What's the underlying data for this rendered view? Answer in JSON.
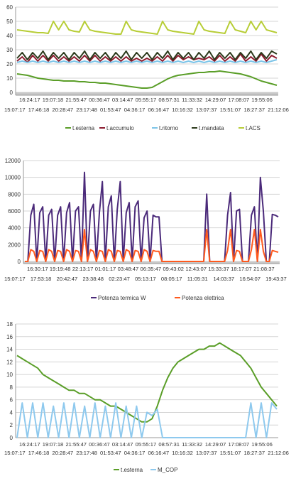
{
  "chart_data": [
    {
      "type": "line",
      "title": "",
      "xlabel": "",
      "ylabel": "",
      "ylim": [
        0,
        60
      ],
      "yticks": [
        0,
        10,
        20,
        30,
        40,
        50,
        60
      ],
      "grid": true,
      "legend": "bottom",
      "x_labels_top": [
        "16:24:17",
        "19:07:18",
        "21:55:47",
        "00:36:47",
        "03:14:47",
        "05:55:17",
        "08:57:31",
        "11:33:32",
        "14:29:07",
        "17:08:07",
        "19:55:06"
      ],
      "x_labels_bottom": [
        "15:07:17",
        "17:46:18",
        "20:28:47",
        "23:17:48",
        "01:53:47",
        "04:36:17",
        "06:16:47",
        "10:16:32",
        "13:07:37",
        "15:51:07",
        "18:27:37",
        "21:12:06"
      ],
      "series": [
        {
          "name": "t.esterna",
          "color": "#5a9e28",
          "values": [
            13,
            12.5,
            12,
            11,
            10,
            9.5,
            9,
            8.5,
            8.5,
            8,
            8,
            8,
            7.5,
            7.5,
            7,
            7,
            6.5,
            6.5,
            6,
            5.5,
            5,
            4.5,
            4,
            3.5,
            3,
            3,
            3.5,
            5.5,
            7.5,
            9.5,
            11,
            12,
            12.5,
            13,
            13.5,
            14,
            14,
            14.5,
            14.5,
            15,
            14.5,
            14,
            13.5,
            13,
            12,
            11,
            9.5,
            8,
            7,
            6,
            5
          ]
        },
        {
          "name": "t.accumulo",
          "color": "#8b1a2e",
          "values": [
            22,
            25,
            21,
            26,
            22,
            26,
            22,
            26,
            22,
            25,
            22,
            25,
            22,
            26,
            22,
            26,
            22,
            25,
            22,
            25,
            22,
            25,
            22,
            24,
            22,
            24,
            22,
            25,
            22,
            26,
            22,
            26,
            23,
            25,
            23,
            24,
            23,
            25,
            22,
            26,
            22,
            25,
            22,
            27,
            22,
            25,
            22,
            27,
            22,
            26,
            24
          ]
        },
        {
          "name": "t.ritorno",
          "color": "#7cc4e8",
          "values": [
            21,
            22,
            21,
            22,
            21,
            22,
            21,
            22,
            21,
            22,
            21,
            22,
            21,
            22,
            21,
            22,
            21,
            22,
            21,
            22,
            21,
            22,
            21,
            22,
            21,
            22,
            21,
            22,
            21,
            22,
            21,
            22,
            21,
            22,
            21,
            22,
            21,
            22,
            21,
            22,
            21,
            22,
            21,
            22,
            21,
            22,
            21,
            22,
            21,
            22,
            23
          ]
        },
        {
          "name": "t.mandata",
          "color": "#2c3a1c",
          "values": [
            24,
            28,
            23,
            28,
            24,
            29,
            23,
            28,
            24,
            28,
            23,
            28,
            24,
            29,
            23,
            28,
            24,
            28,
            23,
            28,
            24,
            29,
            23,
            28,
            24,
            28,
            23,
            28,
            24,
            29,
            23,
            28,
            24,
            28,
            23,
            28,
            24,
            29,
            23,
            28,
            24,
            28,
            23,
            28,
            24,
            29,
            23,
            28,
            24,
            29,
            27
          ]
        },
        {
          "name": "t.ACS",
          "color": "#b7cd36",
          "values": [
            44,
            43.5,
            43,
            42.5,
            42,
            42,
            41.5,
            50,
            44,
            50,
            44,
            43,
            42.5,
            50,
            44,
            43,
            42.5,
            42,
            41.5,
            41,
            41,
            50,
            44,
            43,
            42.5,
            42,
            41.5,
            41,
            50,
            44,
            43,
            42.5,
            42,
            41.5,
            41,
            50,
            44,
            43,
            42.5,
            42,
            41.5,
            50,
            44,
            43,
            42,
            50,
            44,
            50,
            44,
            43,
            42
          ]
        }
      ]
    },
    {
      "type": "line",
      "title": "",
      "xlabel": "",
      "ylabel": "",
      "ylim": [
        0,
        12000
      ],
      "yticks": [
        0,
        2000,
        4000,
        6000,
        8000,
        10000,
        12000
      ],
      "grid": true,
      "legend": "bottom",
      "x_labels_top": [
        "16:30:17",
        "19:19:48",
        "22:13:17",
        "01:01:17",
        "03:48:47",
        "06:35:47",
        "09:43:02",
        "12:43:07",
        "15:33:37",
        "18:17:07",
        "21:08:37"
      ],
      "x_labels_bottom": [
        "15:07:17",
        "17:53:18",
        "20:42:47",
        "23:38:48",
        "02:23:47",
        "05:13:17",
        "08:05:17",
        "11:05:31",
        "14:03:37",
        "16:54:07",
        "19:43:37"
      ],
      "series": [
        {
          "name": "Potenza termica W",
          "color": "#4b2a7a",
          "values": [
            0,
            0,
            5500,
            6800,
            0,
            5800,
            6500,
            0,
            5500,
            6200,
            0,
            5500,
            6500,
            0,
            5800,
            7000,
            0,
            6000,
            6500,
            0,
            10600,
            0,
            6000,
            6800,
            0,
            5800,
            9500,
            0,
            6500,
            7800,
            0,
            6200,
            9500,
            0,
            5800,
            7000,
            0,
            6500,
            7200,
            0,
            5200,
            6000,
            0,
            5500,
            5300,
            5300,
            0,
            0,
            0,
            0,
            0,
            0,
            0,
            0,
            0,
            0,
            0,
            0,
            0,
            0,
            0,
            8000,
            0,
            0,
            0,
            0,
            0,
            0,
            5500,
            8200,
            0,
            6000,
            6200,
            0,
            0,
            0,
            5500,
            6500,
            0,
            10000,
            6000,
            0,
            0,
            5600,
            5500,
            5300
          ]
        },
        {
          "name": "Potenza elettrica",
          "color": "#ff5a1e",
          "values": [
            0,
            0,
            1400,
            1200,
            0,
            1300,
            1200,
            0,
            1400,
            1200,
            0,
            1300,
            1200,
            0,
            1400,
            1200,
            0,
            1300,
            1200,
            0,
            3800,
            0,
            1400,
            1200,
            0,
            1300,
            1200,
            0,
            1400,
            1200,
            0,
            1300,
            1200,
            0,
            1400,
            1200,
            0,
            1300,
            1200,
            0,
            1400,
            1200,
            0,
            1300,
            1200,
            1200,
            0,
            0,
            0,
            0,
            0,
            0,
            0,
            0,
            0,
            0,
            0,
            0,
            0,
            0,
            0,
            3800,
            0,
            0,
            0,
            0,
            0,
            0,
            1300,
            3800,
            0,
            1300,
            1200,
            0,
            0,
            0,
            1400,
            3800,
            0,
            3800,
            1200,
            0,
            0,
            1300,
            1200,
            1100
          ]
        }
      ]
    },
    {
      "type": "line",
      "title": "",
      "xlabel": "",
      "ylabel": "",
      "ylim": [
        0,
        18
      ],
      "yticks": [
        0,
        2,
        4,
        6,
        8,
        10,
        12,
        14,
        16,
        18
      ],
      "grid": true,
      "legend": "bottom",
      "x_labels_top": [
        "16:24:17",
        "19:07:18",
        "21:55:47",
        "00:36:47",
        "03:14:47",
        "05:55:17",
        "08:57:31",
        "11:33:32",
        "14:29:07",
        "17:08:07",
        "19:55:06"
      ],
      "x_labels_bottom": [
        "15:07:17",
        "17:46:18",
        "20:28:47",
        "23:17:48",
        "01:53:47",
        "04:36:17",
        "06:16:47",
        "10:16:32",
        "13:07:37",
        "15:51:07",
        "18:27:37",
        "21:12:06"
      ],
      "series": [
        {
          "name": "t.esterna",
          "color": "#5a9e28",
          "values": [
            13,
            12.5,
            12,
            11.5,
            11,
            10,
            9.5,
            9,
            8.5,
            8,
            7.5,
            7.5,
            7,
            7,
            6.5,
            6,
            6,
            5.5,
            5,
            5,
            4.5,
            4,
            3.5,
            3,
            2.5,
            2.5,
            3,
            5,
            7.5,
            9.5,
            11,
            12,
            12.5,
            13,
            13.5,
            14,
            14,
            14.5,
            14.5,
            15,
            14.5,
            14,
            13.5,
            13,
            12,
            11,
            9.5,
            8,
            7,
            6,
            5
          ]
        },
        {
          "name": "M_COP",
          "color": "#8ec9ee",
          "values": [
            0,
            5.5,
            0,
            5.5,
            0,
            5.5,
            0,
            5,
            0,
            5.5,
            0,
            5.5,
            0,
            5,
            0,
            5.5,
            0,
            5,
            0,
            5.5,
            0,
            5,
            0,
            5,
            0,
            4,
            3.5,
            4.5,
            0,
            0,
            0,
            0,
            0,
            0,
            0,
            0,
            0,
            0,
            0,
            0,
            0,
            0,
            0,
            0,
            0,
            5.5,
            0,
            5.5,
            0,
            5.5,
            4.5
          ]
        }
      ]
    }
  ]
}
